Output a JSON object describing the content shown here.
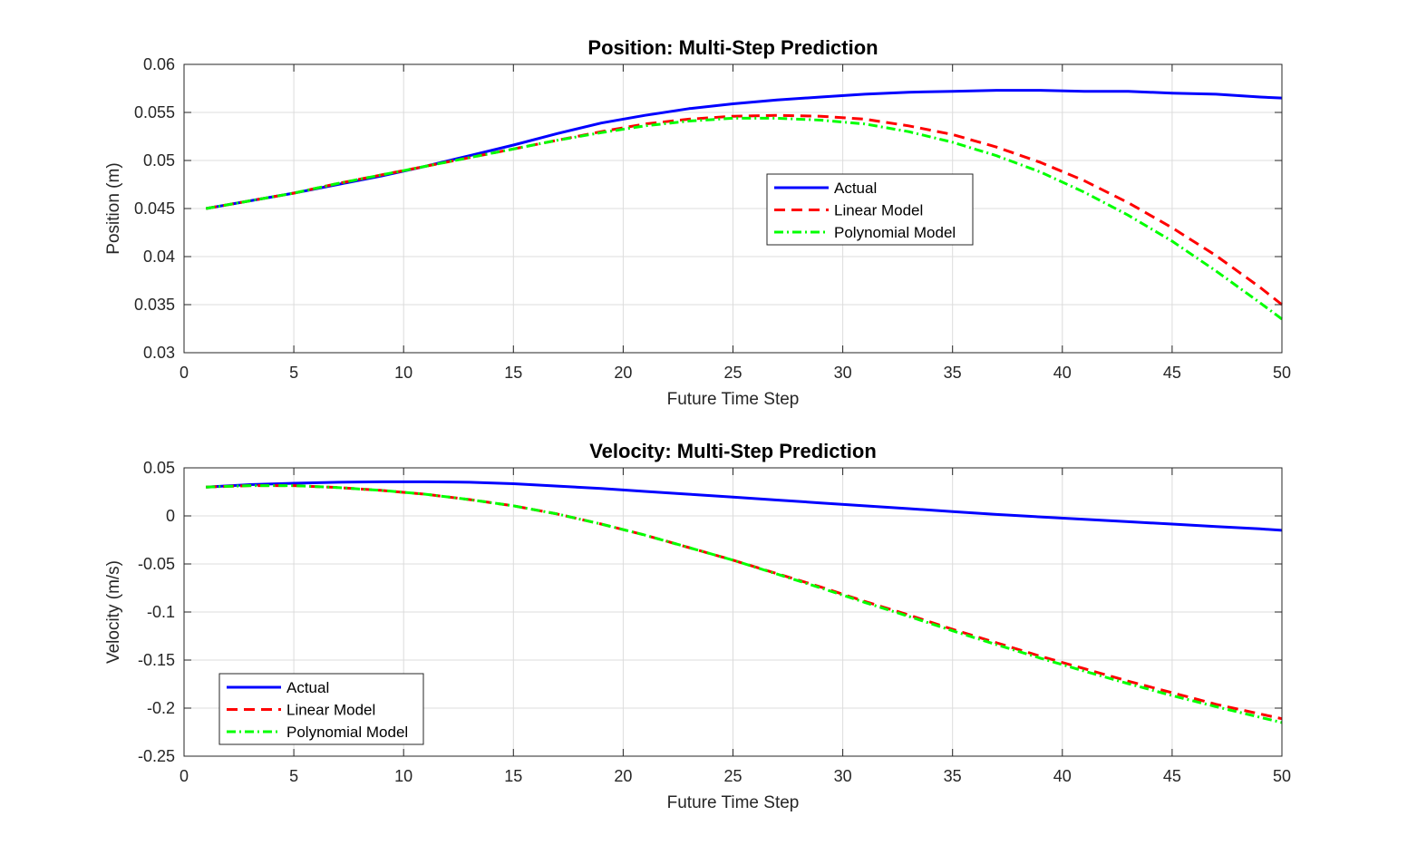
{
  "chart_data": [
    {
      "type": "line",
      "title": "Position: Multi-Step Prediction",
      "xlabel": "Future Time Step",
      "ylabel": "Position (m)",
      "xlim": [
        0,
        50
      ],
      "ylim": [
        0.03,
        0.06
      ],
      "xticks": [
        0,
        5,
        10,
        15,
        20,
        25,
        30,
        35,
        40,
        45,
        50
      ],
      "xtick_labels": [
        "0",
        "5",
        "10",
        "15",
        "20",
        "25",
        "30",
        "35",
        "40",
        "45",
        "50"
      ],
      "yticks": [
        0.03,
        0.035,
        0.04,
        0.045,
        0.05,
        0.055,
        0.06
      ],
      "ytick_labels": [
        "0.03",
        "0.035",
        "0.04",
        "0.045",
        "0.05",
        "0.055",
        "0.06"
      ],
      "grid": true,
      "legend_position": "center-right",
      "x": [
        1,
        3,
        5,
        7,
        9,
        11,
        13,
        15,
        17,
        19,
        21,
        23,
        25,
        27,
        29,
        31,
        33,
        35,
        37,
        39,
        41,
        43,
        45,
        47,
        49,
        50
      ],
      "series": [
        {
          "name": "Actual",
          "color": "#0000ff",
          "dash": "solid",
          "values": [
            0.045,
            0.0458,
            0.0466,
            0.0475,
            0.0484,
            0.0494,
            0.0505,
            0.0516,
            0.0528,
            0.0539,
            0.0547,
            0.0554,
            0.0559,
            0.0563,
            0.0566,
            0.0569,
            0.0571,
            0.0572,
            0.0573,
            0.0573,
            0.0572,
            0.0572,
            0.057,
            0.0569,
            0.0566,
            0.0565
          ]
        },
        {
          "name": "Linear Model",
          "color": "#ff0000",
          "dash": "dashed",
          "values": [
            0.045,
            0.0458,
            0.0466,
            0.0476,
            0.0485,
            0.0494,
            0.0503,
            0.0512,
            0.0521,
            0.053,
            0.0538,
            0.0543,
            0.0546,
            0.0547,
            0.0546,
            0.0543,
            0.0536,
            0.0527,
            0.0514,
            0.0498,
            0.0479,
            0.0456,
            0.043,
            0.0401,
            0.0368,
            0.035
          ]
        },
        {
          "name": "Polynomial Model",
          "color": "#00ff00",
          "dash": "dashdot",
          "values": [
            0.045,
            0.0458,
            0.0466,
            0.0476,
            0.0485,
            0.0494,
            0.0503,
            0.0512,
            0.0521,
            0.0529,
            0.0536,
            0.0541,
            0.0544,
            0.0544,
            0.0542,
            0.0538,
            0.053,
            0.0519,
            0.0505,
            0.0488,
            0.0467,
            0.0443,
            0.0416,
            0.0385,
            0.0352,
            0.0335
          ]
        }
      ]
    },
    {
      "type": "line",
      "title": "Velocity: Multi-Step Prediction",
      "xlabel": "Future Time Step",
      "ylabel": "Velocity (m/s)",
      "xlim": [
        0,
        50
      ],
      "ylim": [
        -0.25,
        0.05
      ],
      "xticks": [
        0,
        5,
        10,
        15,
        20,
        25,
        30,
        35,
        40,
        45,
        50
      ],
      "xtick_labels": [
        "0",
        "5",
        "10",
        "15",
        "20",
        "25",
        "30",
        "35",
        "40",
        "45",
        "50"
      ],
      "yticks": [
        -0.25,
        -0.2,
        -0.15,
        -0.1,
        -0.05,
        0,
        0.05
      ],
      "ytick_labels": [
        "-0.25",
        "-0.2",
        "-0.15",
        "-0.1",
        "-0.05",
        "0",
        "0.05"
      ],
      "grid": true,
      "legend_position": "bottom-left",
      "x": [
        1,
        3,
        5,
        7,
        9,
        11,
        13,
        15,
        17,
        19,
        21,
        23,
        25,
        27,
        29,
        31,
        33,
        35,
        37,
        39,
        41,
        43,
        45,
        47,
        49,
        50
      ],
      "series": [
        {
          "name": "Actual",
          "color": "#0000ff",
          "dash": "solid",
          "values": [
            0.03,
            0.0325,
            0.034,
            0.035,
            0.0355,
            0.0355,
            0.035,
            0.0335,
            0.031,
            0.0285,
            0.0255,
            0.0225,
            0.0195,
            0.0165,
            0.0135,
            0.0105,
            0.0075,
            0.0045,
            0.0015,
            -0.001,
            -0.0035,
            -0.006,
            -0.0085,
            -0.011,
            -0.0135,
            -0.015
          ]
        },
        {
          "name": "Linear Model",
          "color": "#ff0000",
          "dash": "dashed",
          "values": [
            0.03,
            0.0315,
            0.0315,
            0.0295,
            0.0265,
            0.0225,
            0.017,
            0.0105,
            0.002,
            -0.0085,
            -0.02,
            -0.033,
            -0.046,
            -0.06,
            -0.074,
            -0.089,
            -0.103,
            -0.118,
            -0.132,
            -0.146,
            -0.159,
            -0.172,
            -0.184,
            -0.196,
            -0.206,
            -0.211
          ]
        },
        {
          "name": "Polynomial Model",
          "color": "#00ff00",
          "dash": "dashdot",
          "values": [
            0.03,
            0.0315,
            0.0315,
            0.0295,
            0.0265,
            0.0225,
            0.017,
            0.0105,
            0.002,
            -0.0085,
            -0.02,
            -0.033,
            -0.046,
            -0.0605,
            -0.075,
            -0.09,
            -0.1045,
            -0.1195,
            -0.134,
            -0.148,
            -0.1615,
            -0.1745,
            -0.187,
            -0.1985,
            -0.2095,
            -0.215
          ]
        }
      ]
    }
  ]
}
